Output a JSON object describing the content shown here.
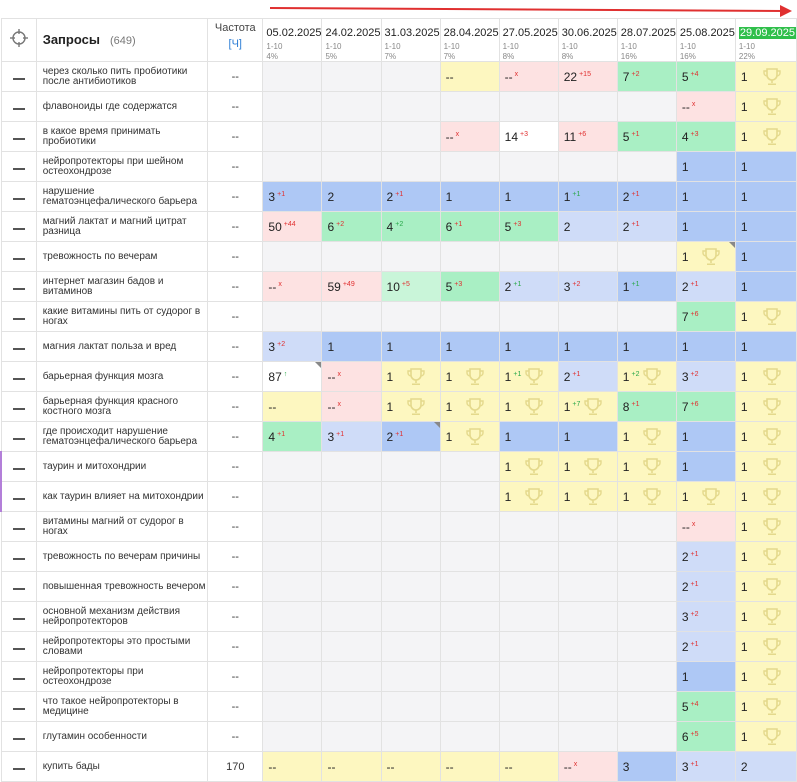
{
  "header": {
    "queries_title": "Запросы",
    "queries_count": "(649)",
    "frequency_label": "Частота",
    "frequency_unit": "[Ч]",
    "dates": [
      {
        "date": "05.02.2025",
        "range": "1-10",
        "percent": "4%"
      },
      {
        "date": "24.02.2025",
        "range": "1-10",
        "percent": "5%"
      },
      {
        "date": "31.03.2025",
        "range": "1-10",
        "percent": "7%"
      },
      {
        "date": "28.04.2025",
        "range": "1-10",
        "percent": "7%"
      },
      {
        "date": "27.05.2025",
        "range": "1-10",
        "percent": "8%"
      },
      {
        "date": "30.06.2025",
        "range": "1-10",
        "percent": "8%"
      },
      {
        "date": "28.07.2025",
        "range": "1-10",
        "percent": "16%"
      },
      {
        "date": "25.08.2025",
        "range": "1-10",
        "percent": "16%"
      },
      {
        "date": "29.09.2025",
        "range": "1-10",
        "percent": "22%"
      }
    ],
    "current_date_index": 8
  },
  "colors": {
    "current_date": "#2fbf4a",
    "arrow": "#e03030",
    "change_down": "#e03030",
    "change_up": "#2aa84a",
    "frequency_unit": "#2f7fd6",
    "marker": "#b37fd9"
  },
  "icons": {
    "target": "crosshair-icon",
    "trophy": "trophy-icon",
    "row_action": "dash-icon",
    "timeline": "arrow-right-icon"
  },
  "rows": [
    {
      "query": "через сколько пить пробиотики после антибиотиков",
      "freq": "--",
      "cells": [
        {
          "bg": "empty"
        },
        {
          "bg": "empty"
        },
        {
          "bg": "empty"
        },
        {
          "v": "--",
          "bg": "yellow"
        },
        {
          "v": "--",
          "ch": "x",
          "bg": "pink"
        },
        {
          "v": "22",
          "ch": "+15",
          "bg": "pink"
        },
        {
          "v": "7",
          "ch": "+2",
          "bg": "green"
        },
        {
          "v": "5",
          "ch": "+4",
          "bg": "green"
        },
        {
          "v": "1",
          "bg": "yellow",
          "t": 1
        }
      ]
    },
    {
      "query": "флавоноиды где содержатся",
      "freq": "--",
      "cells": [
        {
          "bg": "empty"
        },
        {
          "bg": "empty"
        },
        {
          "bg": "empty"
        },
        {
          "bg": "empty"
        },
        {
          "bg": "empty"
        },
        {
          "bg": "empty"
        },
        {
          "bg": "empty"
        },
        {
          "v": "--",
          "ch": "x",
          "bg": "pink"
        },
        {
          "v": "1",
          "bg": "yellow",
          "t": 1
        }
      ]
    },
    {
      "query": "в какое время принимать пробиотики",
      "freq": "--",
      "cells": [
        {
          "bg": "empty"
        },
        {
          "bg": "empty"
        },
        {
          "bg": "empty"
        },
        {
          "v": "--",
          "ch": "x",
          "bg": "pink"
        },
        {
          "v": "14",
          "ch": "+3",
          "bg": "white"
        },
        {
          "v": "11",
          "ch": "+6",
          "bg": "pink"
        },
        {
          "v": "5",
          "ch": "+1",
          "bg": "green"
        },
        {
          "v": "4",
          "ch": "+3",
          "bg": "green"
        },
        {
          "v": "1",
          "bg": "yellow",
          "t": 1
        }
      ]
    },
    {
      "query": "нейропротекторы при шейном остеохондрозе",
      "freq": "--",
      "cells": [
        {
          "bg": "empty"
        },
        {
          "bg": "empty"
        },
        {
          "bg": "empty"
        },
        {
          "bg": "empty"
        },
        {
          "bg": "empty"
        },
        {
          "bg": "empty"
        },
        {
          "bg": "empty"
        },
        {
          "v": "1",
          "bg": "blue"
        },
        {
          "v": "1",
          "bg": "blue"
        }
      ]
    },
    {
      "query": "нарушение гематоэнцефалического барьера",
      "freq": "--",
      "cells": [
        {
          "v": "3",
          "ch": "+1",
          "bg": "blue"
        },
        {
          "v": "2",
          "bg": "blue"
        },
        {
          "v": "2",
          "ch": "+1",
          "bg": "blue"
        },
        {
          "v": "1",
          "bg": "blue"
        },
        {
          "v": "1",
          "bg": "blue"
        },
        {
          "v": "1",
          "ch": "+1",
          "up": 1,
          "bg": "blue"
        },
        {
          "v": "2",
          "ch": "+1",
          "bg": "blue"
        },
        {
          "v": "1",
          "bg": "blue"
        },
        {
          "v": "1",
          "bg": "blue"
        }
      ]
    },
    {
      "query": "магний лактат и магний цитрат разница",
      "freq": "--",
      "cells": [
        {
          "v": "50",
          "ch": "+44",
          "bg": "pink"
        },
        {
          "v": "6",
          "ch": "+2",
          "bg": "green"
        },
        {
          "v": "4",
          "ch": "+2",
          "up": 1,
          "bg": "green"
        },
        {
          "v": "6",
          "ch": "+1",
          "bg": "green"
        },
        {
          "v": "5",
          "ch": "+3",
          "bg": "green"
        },
        {
          "v": "2",
          "bg": "lblue"
        },
        {
          "v": "2",
          "ch": "+1",
          "bg": "lblue"
        },
        {
          "v": "1",
          "bg": "blue"
        },
        {
          "v": "1",
          "bg": "blue"
        }
      ]
    },
    {
      "query": "тревожность по вечерам",
      "freq": "--",
      "cells": [
        {
          "bg": "empty"
        },
        {
          "bg": "empty"
        },
        {
          "bg": "empty"
        },
        {
          "bg": "empty"
        },
        {
          "bg": "empty"
        },
        {
          "bg": "empty"
        },
        {
          "bg": "empty"
        },
        {
          "v": "1",
          "bg": "yellow",
          "t": 1,
          "f": 1
        },
        {
          "v": "1",
          "bg": "blue"
        }
      ]
    },
    {
      "query": "интернет магазин бадов и витаминов",
      "freq": "--",
      "cells": [
        {
          "v": "--",
          "ch": "x",
          "bg": "pink"
        },
        {
          "v": "59",
          "ch": "+49",
          "bg": "pink"
        },
        {
          "v": "10",
          "ch": "+5",
          "bg": "lgreen"
        },
        {
          "v": "5",
          "ch": "+3",
          "bg": "green"
        },
        {
          "v": "2",
          "ch": "+1",
          "up": 1,
          "bg": "lblue"
        },
        {
          "v": "3",
          "ch": "+2",
          "bg": "lblue"
        },
        {
          "v": "1",
          "ch": "+1",
          "up": 1,
          "bg": "blue"
        },
        {
          "v": "2",
          "ch": "+1",
          "bg": "lblue"
        },
        {
          "v": "1",
          "bg": "blue"
        }
      ]
    },
    {
      "query": "какие витамины пить от судорог в ногах",
      "freq": "--",
      "cells": [
        {
          "bg": "empty"
        },
        {
          "bg": "empty"
        },
        {
          "bg": "empty"
        },
        {
          "bg": "empty"
        },
        {
          "bg": "empty"
        },
        {
          "bg": "empty"
        },
        {
          "bg": "empty"
        },
        {
          "v": "7",
          "ch": "+6",
          "bg": "green"
        },
        {
          "v": "1",
          "bg": "yellow",
          "t": 1
        }
      ]
    },
    {
      "query": "магния лактат польза и вред",
      "freq": "--",
      "cells": [
        {
          "v": "3",
          "ch": "+2",
          "bg": "lblue"
        },
        {
          "v": "1",
          "bg": "blue"
        },
        {
          "v": "1",
          "bg": "blue"
        },
        {
          "v": "1",
          "bg": "blue"
        },
        {
          "v": "1",
          "bg": "blue"
        },
        {
          "v": "1",
          "bg": "blue"
        },
        {
          "v": "1",
          "bg": "blue"
        },
        {
          "v": "1",
          "bg": "blue"
        },
        {
          "v": "1",
          "bg": "blue"
        }
      ]
    },
    {
      "query": "барьерная функция мозга",
      "freq": "--",
      "cells": [
        {
          "v": "87",
          "ch": "↑",
          "up": 1,
          "bg": "white",
          "f": 1
        },
        {
          "v": "--",
          "ch": "x",
          "bg": "pink"
        },
        {
          "v": "1",
          "bg": "yellow",
          "t": 1
        },
        {
          "v": "1",
          "bg": "yellow",
          "t": 1
        },
        {
          "v": "1",
          "ch": "+1",
          "up": 1,
          "bg": "yellow",
          "t": 1
        },
        {
          "v": "2",
          "ch": "+1",
          "bg": "lblue"
        },
        {
          "v": "1",
          "ch": "+2",
          "up": 1,
          "bg": "yellow",
          "t": 1
        },
        {
          "v": "3",
          "ch": "+2",
          "bg": "lblue"
        },
        {
          "v": "1",
          "bg": "yellow",
          "t": 1
        }
      ]
    },
    {
      "query": "барьерная функция красного костного мозга",
      "freq": "--",
      "cells": [
        {
          "v": "--",
          "bg": "yellow"
        },
        {
          "v": "--",
          "ch": "x",
          "bg": "pink"
        },
        {
          "v": "1",
          "bg": "yellow",
          "t": 1
        },
        {
          "v": "1",
          "bg": "yellow",
          "t": 1
        },
        {
          "v": "1",
          "bg": "yellow",
          "t": 1
        },
        {
          "v": "1",
          "ch": "+7",
          "up": 1,
          "bg": "yellow",
          "t": 1
        },
        {
          "v": "8",
          "ch": "+1",
          "bg": "green"
        },
        {
          "v": "7",
          "ch": "+6",
          "bg": "green"
        },
        {
          "v": "1",
          "bg": "yellow",
          "t": 1
        }
      ]
    },
    {
      "query": "где происходит нарушение гематоэнцефалического барьера",
      "freq": "--",
      "cells": [
        {
          "v": "4",
          "ch": "+1",
          "bg": "green"
        },
        {
          "v": "3",
          "ch": "+1",
          "bg": "lblue"
        },
        {
          "v": "2",
          "ch": "+1",
          "bg": "blue",
          "f": 1
        },
        {
          "v": "1",
          "bg": "yellow",
          "t": 1
        },
        {
          "v": "1",
          "bg": "blue"
        },
        {
          "v": "1",
          "bg": "blue"
        },
        {
          "v": "1",
          "bg": "yellow",
          "t": 1
        },
        {
          "v": "1",
          "bg": "blue"
        },
        {
          "v": "1",
          "bg": "yellow",
          "t": 1
        }
      ]
    },
    {
      "query": "таурин и митохондрии",
      "freq": "--",
      "mark": 1,
      "cells": [
        {
          "bg": "empty"
        },
        {
          "bg": "empty"
        },
        {
          "bg": "empty"
        },
        {
          "bg": "empty"
        },
        {
          "v": "1",
          "bg": "yellow",
          "t": 1
        },
        {
          "v": "1",
          "bg": "yellow",
          "t": 1
        },
        {
          "v": "1",
          "bg": "yellow",
          "t": 1
        },
        {
          "v": "1",
          "bg": "blue"
        },
        {
          "v": "1",
          "bg": "yellow",
          "t": 1
        }
      ]
    },
    {
      "query": "как таурин влияет на митохондрии",
      "freq": "--",
      "mark": 1,
      "cells": [
        {
          "bg": "empty"
        },
        {
          "bg": "empty"
        },
        {
          "bg": "empty"
        },
        {
          "bg": "empty"
        },
        {
          "v": "1",
          "bg": "yellow",
          "t": 1
        },
        {
          "v": "1",
          "bg": "yellow",
          "t": 1
        },
        {
          "v": "1",
          "bg": "yellow",
          "t": 1
        },
        {
          "v": "1",
          "bg": "yellow",
          "t": 1
        },
        {
          "v": "1",
          "bg": "yellow",
          "t": 1
        }
      ]
    },
    {
      "query": "витамины магний от судорог в ногах",
      "freq": "--",
      "cells": [
        {
          "bg": "empty"
        },
        {
          "bg": "empty"
        },
        {
          "bg": "empty"
        },
        {
          "bg": "empty"
        },
        {
          "bg": "empty"
        },
        {
          "bg": "empty"
        },
        {
          "bg": "empty"
        },
        {
          "v": "--",
          "ch": "x",
          "bg": "pink"
        },
        {
          "v": "1",
          "bg": "yellow",
          "t": 1
        }
      ]
    },
    {
      "query": "тревожность по вечерам причины",
      "freq": "--",
      "cells": [
        {
          "bg": "empty"
        },
        {
          "bg": "empty"
        },
        {
          "bg": "empty"
        },
        {
          "bg": "empty"
        },
        {
          "bg": "empty"
        },
        {
          "bg": "empty"
        },
        {
          "bg": "empty"
        },
        {
          "v": "2",
          "ch": "+1",
          "bg": "lblue"
        },
        {
          "v": "1",
          "bg": "yellow",
          "t": 1
        }
      ]
    },
    {
      "query": "повышенная тревожность вечером",
      "freq": "--",
      "cells": [
        {
          "bg": "empty"
        },
        {
          "bg": "empty"
        },
        {
          "bg": "empty"
        },
        {
          "bg": "empty"
        },
        {
          "bg": "empty"
        },
        {
          "bg": "empty"
        },
        {
          "bg": "empty"
        },
        {
          "v": "2",
          "ch": "+1",
          "bg": "lblue"
        },
        {
          "v": "1",
          "bg": "yellow",
          "t": 1
        }
      ]
    },
    {
      "query": "основной механизм действия нейропротекторов",
      "freq": "--",
      "cells": [
        {
          "bg": "empty"
        },
        {
          "bg": "empty"
        },
        {
          "bg": "empty"
        },
        {
          "bg": "empty"
        },
        {
          "bg": "empty"
        },
        {
          "bg": "empty"
        },
        {
          "bg": "empty"
        },
        {
          "v": "3",
          "ch": "+2",
          "bg": "lblue"
        },
        {
          "v": "1",
          "bg": "yellow",
          "t": 1
        }
      ]
    },
    {
      "query": "нейропротекторы это простыми словами",
      "freq": "--",
      "cells": [
        {
          "bg": "empty"
        },
        {
          "bg": "empty"
        },
        {
          "bg": "empty"
        },
        {
          "bg": "empty"
        },
        {
          "bg": "empty"
        },
        {
          "bg": "empty"
        },
        {
          "bg": "empty"
        },
        {
          "v": "2",
          "ch": "+1",
          "bg": "lblue"
        },
        {
          "v": "1",
          "bg": "yellow",
          "t": 1
        }
      ]
    },
    {
      "query": "нейропротекторы при остеохондрозе",
      "freq": "--",
      "cells": [
        {
          "bg": "empty"
        },
        {
          "bg": "empty"
        },
        {
          "bg": "empty"
        },
        {
          "bg": "empty"
        },
        {
          "bg": "empty"
        },
        {
          "bg": "empty"
        },
        {
          "bg": "empty"
        },
        {
          "v": "1",
          "bg": "blue"
        },
        {
          "v": "1",
          "bg": "yellow",
          "t": 1
        }
      ]
    },
    {
      "query": "что такое нейропротекторы в медицине",
      "freq": "--",
      "cells": [
        {
          "bg": "empty"
        },
        {
          "bg": "empty"
        },
        {
          "bg": "empty"
        },
        {
          "bg": "empty"
        },
        {
          "bg": "empty"
        },
        {
          "bg": "empty"
        },
        {
          "bg": "empty"
        },
        {
          "v": "5",
          "ch": "+4",
          "bg": "green"
        },
        {
          "v": "1",
          "bg": "yellow",
          "t": 1
        }
      ]
    },
    {
      "query": "глутамин особенности",
      "freq": "--",
      "cells": [
        {
          "bg": "empty"
        },
        {
          "bg": "empty"
        },
        {
          "bg": "empty"
        },
        {
          "bg": "empty"
        },
        {
          "bg": "empty"
        },
        {
          "bg": "empty"
        },
        {
          "bg": "empty"
        },
        {
          "v": "6",
          "ch": "+5",
          "bg": "green"
        },
        {
          "v": "1",
          "bg": "yellow",
          "t": 1
        }
      ]
    },
    {
      "query": "купить бады",
      "freq": "170",
      "cells": [
        {
          "v": "--",
          "bg": "yellow"
        },
        {
          "v": "--",
          "bg": "yellow"
        },
        {
          "v": "--",
          "bg": "yellow"
        },
        {
          "v": "--",
          "bg": "yellow"
        },
        {
          "v": "--",
          "bg": "yellow"
        },
        {
          "v": "--",
          "ch": "x",
          "bg": "pink"
        },
        {
          "v": "3",
          "bg": "blue"
        },
        {
          "v": "3",
          "ch": "+1",
          "bg": "lblue"
        },
        {
          "v": "2",
          "bg": "lblue"
        }
      ]
    }
  ]
}
